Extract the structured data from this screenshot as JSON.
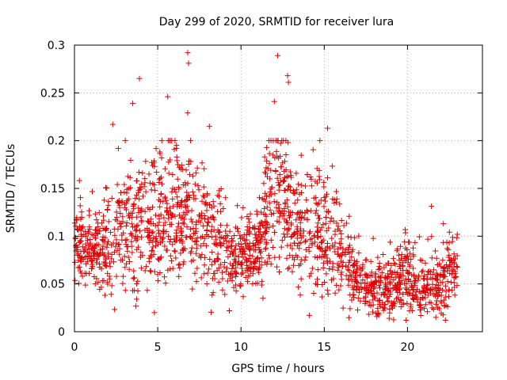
{
  "chart_data": {
    "type": "scatter",
    "title": "Day 299 of 2020, SRMTID for receiver lura",
    "xlabel": "GPS time / hours",
    "ylabel": "SRMTID / TECUs",
    "xlim": [
      0,
      24.5
    ],
    "ylim": [
      0,
      0.3
    ],
    "xticks": [
      0,
      5,
      10,
      15,
      20
    ],
    "xtick_labels": [
      "0",
      "5",
      "10",
      "15",
      "20"
    ],
    "yticks": [
      0,
      0.05,
      0.1,
      0.15,
      0.2,
      0.25,
      0.3
    ],
    "ytick_labels": [
      "0",
      "0.05",
      "0.1",
      "0.15",
      "0.2",
      "0.25",
      "0.3"
    ],
    "grid": true,
    "marker": "plus",
    "color": "#e00000",
    "series": [
      {
        "name": "SRMTID",
        "envelope_note": "hourly typical level and spread of the dense point cloud",
        "profile_hours": [
          0,
          1,
          2,
          3,
          4,
          5,
          6,
          7,
          8,
          9,
          10,
          11,
          12,
          13,
          14,
          15,
          16,
          17,
          18,
          19,
          20,
          21,
          22,
          23
        ],
        "profile_mean": [
          0.095,
          0.085,
          0.09,
          0.11,
          0.115,
          0.12,
          0.125,
          0.12,
          0.105,
          0.085,
          0.08,
          0.085,
          0.15,
          0.125,
          0.11,
          0.11,
          0.08,
          0.055,
          0.045,
          0.045,
          0.06,
          0.045,
          0.05,
          0.07
        ],
        "profile_spread": [
          0.02,
          0.018,
          0.025,
          0.035,
          0.035,
          0.035,
          0.035,
          0.03,
          0.03,
          0.02,
          0.02,
          0.025,
          0.04,
          0.03,
          0.03,
          0.035,
          0.025,
          0.015,
          0.015,
          0.015,
          0.02,
          0.015,
          0.018,
          0.02
        ],
        "notable_points": [
          {
            "x": 6.8,
            "y": 0.292
          },
          {
            "x": 6.85,
            "y": 0.281
          },
          {
            "x": 12.2,
            "y": 0.289
          },
          {
            "x": 3.9,
            "y": 0.265
          },
          {
            "x": 12.8,
            "y": 0.268
          },
          {
            "x": 12.85,
            "y": 0.261
          },
          {
            "x": 5.6,
            "y": 0.246
          },
          {
            "x": 12.0,
            "y": 0.241
          },
          {
            "x": 3.5,
            "y": 0.239
          },
          {
            "x": 6.8,
            "y": 0.229
          },
          {
            "x": 2.3,
            "y": 0.217
          },
          {
            "x": 8.1,
            "y": 0.215
          },
          {
            "x": 15.2,
            "y": 0.213
          },
          {
            "x": 9.3,
            "y": 0.022
          },
          {
            "x": 4.8,
            "y": 0.02
          },
          {
            "x": 20.8,
            "y": 0.017
          },
          {
            "x": 21.7,
            "y": 0.015
          },
          {
            "x": 18.9,
            "y": 0.014
          }
        ]
      }
    ]
  }
}
